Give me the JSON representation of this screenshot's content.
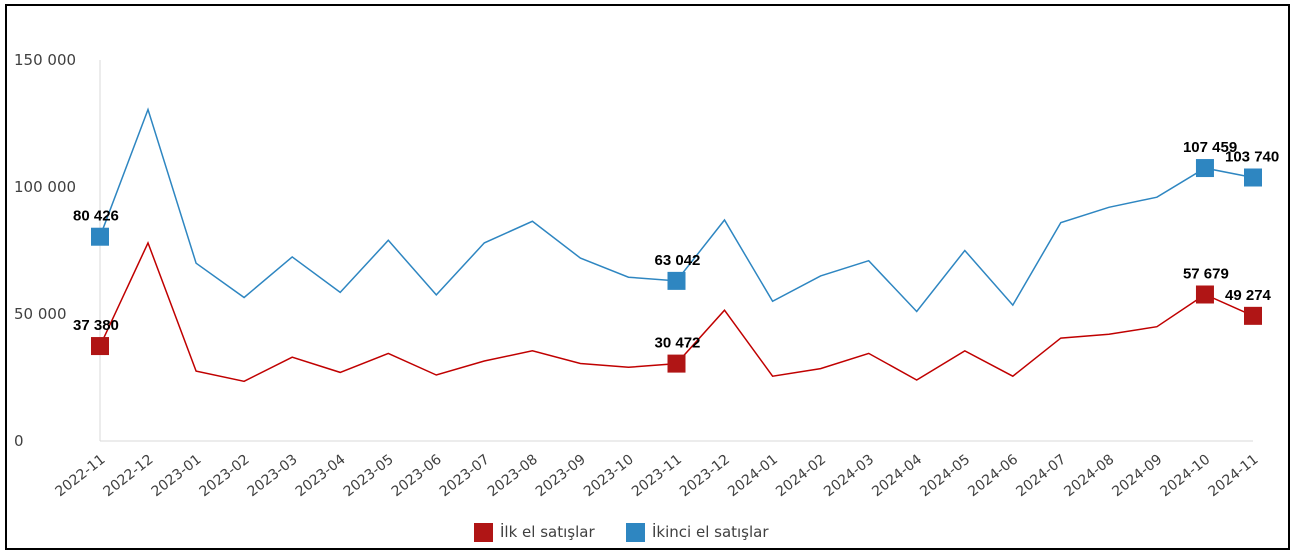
{
  "chart_data": {
    "type": "line",
    "title": "",
    "xlabel": "",
    "ylabel": "",
    "ylim": [
      0,
      150000
    ],
    "yticks": [
      0,
      50000,
      100000,
      150000
    ],
    "ytick_labels": [
      "0",
      "50 000",
      "100 000",
      "150 000"
    ],
    "grid": false,
    "legend_position": "bottom",
    "x": [
      "2022-11",
      "2022-12",
      "2023-01",
      "2023-02",
      "2023-03",
      "2023-04",
      "2023-05",
      "2023-06",
      "2023-07",
      "2023-08",
      "2023-09",
      "2023-10",
      "2023-11",
      "2023-12",
      "2024-01",
      "2024-02",
      "2024-03",
      "2024-04",
      "2024-05",
      "2024-06",
      "2024-07",
      "2024-08",
      "2024-09",
      "2024-10",
      "2024-11"
    ],
    "series": [
      {
        "name": "İlk el satışlar",
        "color": "#c00000",
        "marker_color": "#b01515",
        "values": [
          37380,
          78000,
          27500,
          23500,
          33000,
          27000,
          34500,
          26000,
          31500,
          35500,
          30500,
          29000,
          30472,
          51500,
          25500,
          28500,
          34500,
          24000,
          35500,
          25500,
          40500,
          42000,
          45000,
          57679,
          49274
        ],
        "labeled_points": [
          {
            "index": 0,
            "label": "37 380"
          },
          {
            "index": 12,
            "label": "30 472"
          },
          {
            "index": 23,
            "label": "57 679"
          },
          {
            "index": 24,
            "label": "49 274"
          }
        ]
      },
      {
        "name": "İkinci el satışlar",
        "color": "#2e86c1",
        "marker_color": "#2e86c1",
        "values": [
          80426,
          130500,
          70000,
          56500,
          72500,
          58500,
          79000,
          57500,
          78000,
          86500,
          72000,
          64500,
          63042,
          87000,
          55000,
          65000,
          71000,
          51000,
          75000,
          53500,
          86000,
          92000,
          96000,
          107459,
          103740
        ],
        "labeled_points": [
          {
            "index": 0,
            "label": "80 426"
          },
          {
            "index": 12,
            "label": "63 042"
          },
          {
            "index": 23,
            "label": "107 459"
          },
          {
            "index": 24,
            "label": "103 740"
          }
        ]
      }
    ]
  }
}
